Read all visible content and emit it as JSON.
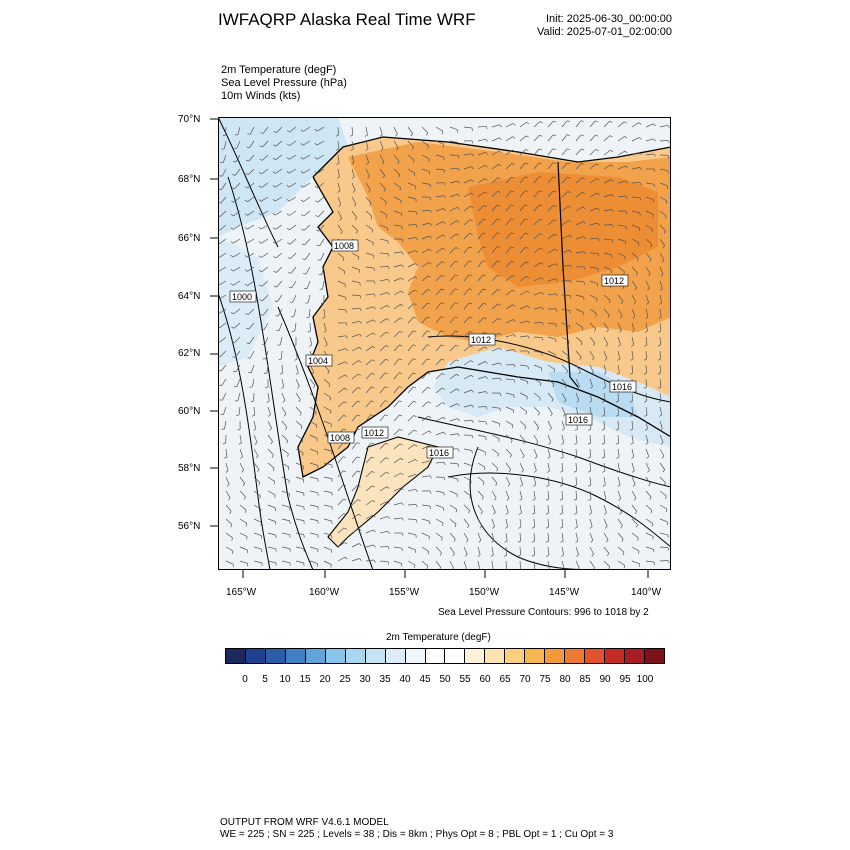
{
  "header": {
    "title": "IWFAQRP Alaska Real Time WRF",
    "init": "Init: 2025-06-30_00:00:00",
    "valid": "Valid: 2025-07-01_02:00:00"
  },
  "fields": [
    "2m Temperature   (degF)",
    "Sea Level Pressure   (hPa)",
    "10m Winds   (kts)"
  ],
  "map": {
    "lat_labels": [
      "70°N",
      "68°N",
      "66°N",
      "64°N",
      "62°N",
      "60°N",
      "58°N",
      "56°N"
    ],
    "lon_labels": [
      "165°W",
      "160°W",
      "155°W",
      "150°W",
      "145°W",
      "140°W"
    ],
    "isobar_labels": [
      "1008",
      "1000",
      "1004",
      "1008",
      "1012",
      "1016",
      "1012",
      "1012",
      "1016",
      "1016"
    ],
    "colors": {
      "land_hot": "#f2993a",
      "land_warm": "#f7bd6a",
      "sea": "#e3eef7",
      "cold": "#a8d5f0"
    }
  },
  "slp_note": "Sea Level Pressure Contours: 996 to 1018 by 2",
  "colorbar": {
    "title": "2m Temperature  (degF)",
    "ticks": [
      "0",
      "5",
      "10",
      "15",
      "20",
      "25",
      "30",
      "35",
      "40",
      "45",
      "50",
      "55",
      "60",
      "65",
      "70",
      "75",
      "80",
      "85",
      "90",
      "95",
      "100"
    ],
    "colors": [
      "#1a2a5e",
      "#1f3f8f",
      "#2a5ca8",
      "#3f7fc4",
      "#62a4d9",
      "#88c4ea",
      "#a9d6f1",
      "#c4e3f5",
      "#dcedf8",
      "#eef5fb",
      "#ffffff",
      "#ffffff",
      "#fff2d9",
      "#fde3b0",
      "#fbcf80",
      "#f7b650",
      "#f39a3c",
      "#ee7a31",
      "#e2532b",
      "#c42a26",
      "#a61d22",
      "#7e1317"
    ]
  },
  "footer": {
    "line1": "OUTPUT FROM WRF V4.6.1 MODEL",
    "line2": "WE = 225 ; SN = 225 ; Levels = 38 ; Dis = 8km ; Phys Opt = 8 ; PBL Opt = 1 ; Cu Opt = 3"
  }
}
